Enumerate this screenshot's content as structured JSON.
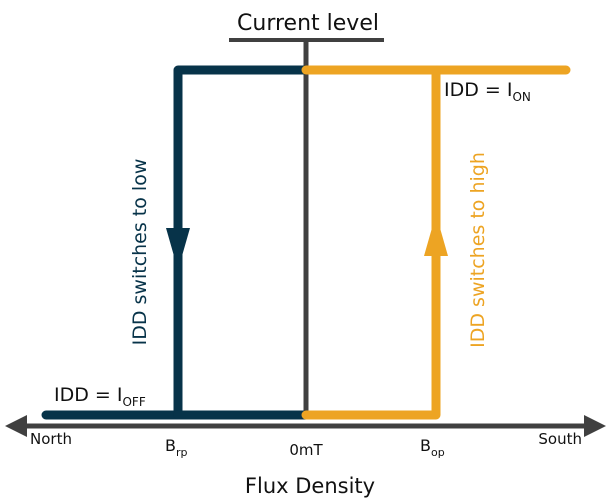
{
  "title": "Current level",
  "x_axis": {
    "title": "Flux Density",
    "left_end": "North",
    "right_end": "South",
    "center": "0mT",
    "brp_main": "B",
    "brp_sub": "rp",
    "bop_main": "B",
    "bop_sub": "op"
  },
  "labels": {
    "idd_low_main": "IDD = I",
    "idd_low_sub": "OFF",
    "idd_high_main": "IDD = I",
    "idd_high_sub": "ON",
    "switch_low": "IDD switches to low",
    "switch_high": "IDD switches to high"
  },
  "colors": {
    "low_path": "#073349",
    "high_path": "#eda423",
    "axis": "#404040",
    "text": "#111111"
  }
}
